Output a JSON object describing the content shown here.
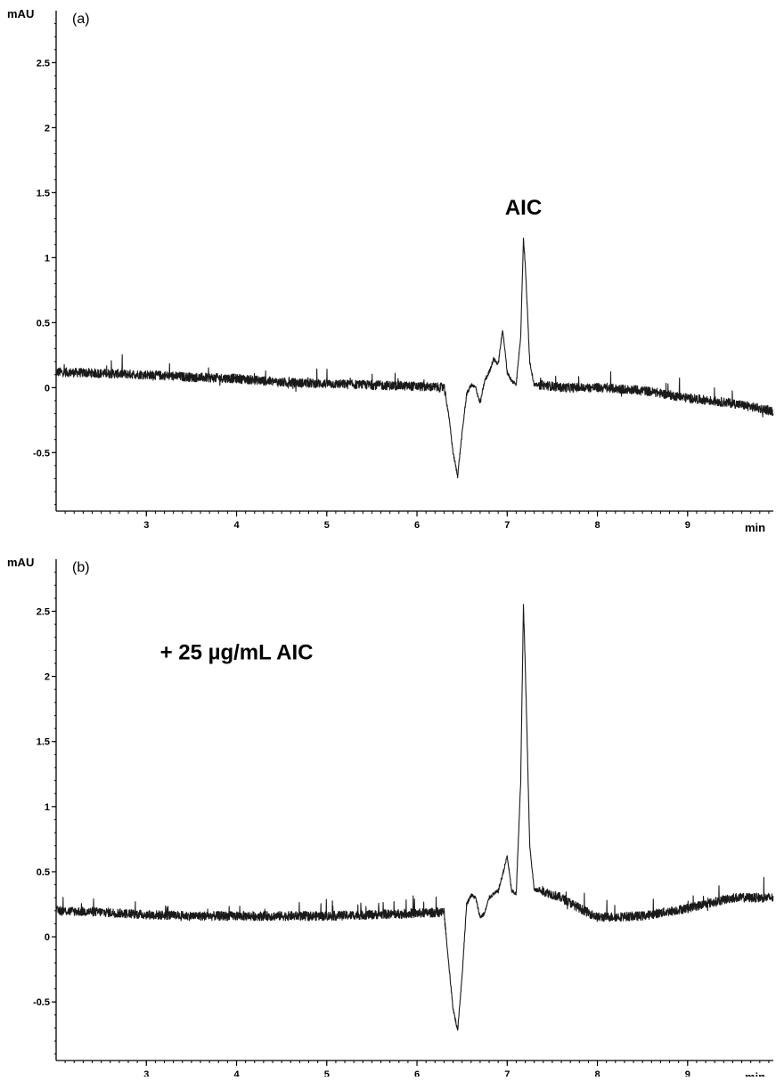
{
  "chart_data": [
    {
      "type": "line",
      "panel_label": "(a)",
      "ylabel": "mAU",
      "xlabel": "min",
      "xlim": [
        2.0,
        9.95
      ],
      "ylim": [
        -0.95,
        2.9
      ],
      "x_ticks": [
        "3",
        "4",
        "5",
        "6",
        "7",
        "8",
        "9"
      ],
      "y_ticks": [
        "-0.5",
        "0",
        "0.5",
        "1",
        "1.5",
        "2",
        "2.5"
      ],
      "annotations": [
        {
          "text": "AIC",
          "x": 7.18,
          "y": 1.33
        }
      ],
      "grid": false,
      "series": [
        {
          "x": [
            2.0,
            2.5,
            3.0,
            3.5,
            4.0,
            4.5,
            5.0,
            5.5,
            6.0,
            6.3,
            6.35,
            6.4,
            6.45,
            6.5,
            6.55,
            6.6,
            6.65,
            6.7,
            6.75,
            6.8,
            6.85,
            6.9,
            6.95,
            7.0,
            7.05,
            7.1,
            7.15,
            7.18,
            7.2,
            7.25,
            7.3,
            7.4,
            7.6,
            7.8,
            8.0,
            8.5,
            9.0,
            9.5,
            9.95
          ],
          "y": [
            0.12,
            0.11,
            0.1,
            0.08,
            0.07,
            0.04,
            0.03,
            0.02,
            0.01,
            0.0,
            -0.2,
            -0.5,
            -0.68,
            -0.35,
            -0.05,
            0.02,
            0.0,
            -0.12,
            0.05,
            0.12,
            0.22,
            0.18,
            0.45,
            0.12,
            0.05,
            0.03,
            0.4,
            1.15,
            0.95,
            0.2,
            0.02,
            0.02,
            0.0,
            0.0,
            0.0,
            -0.02,
            -0.08,
            -0.12,
            -0.18
          ]
        }
      ]
    },
    {
      "type": "line",
      "panel_label": "(b)",
      "ylabel": "mAU",
      "xlabel": "min",
      "xlim": [
        2.0,
        9.95
      ],
      "ylim": [
        -0.95,
        2.9
      ],
      "x_ticks": [
        "3",
        "4",
        "5",
        "6",
        "7",
        "8",
        "9"
      ],
      "y_ticks": [
        "-0.5",
        "0",
        "0.5",
        "1",
        "1.5",
        "2",
        "2.5"
      ],
      "annotations": [
        {
          "text": "+ 25 µg/mL AIC",
          "x": 4.0,
          "y": 2.13
        }
      ],
      "grid": false,
      "series": [
        {
          "x": [
            2.0,
            2.5,
            3.0,
            3.5,
            4.0,
            4.5,
            5.0,
            5.5,
            6.0,
            6.3,
            6.35,
            6.4,
            6.45,
            6.5,
            6.55,
            6.6,
            6.65,
            6.7,
            6.75,
            6.8,
            6.85,
            6.9,
            6.95,
            7.0,
            7.05,
            7.1,
            7.15,
            7.18,
            7.2,
            7.25,
            7.3,
            7.4,
            7.6,
            7.8,
            8.0,
            8.5,
            9.0,
            9.5,
            9.95
          ],
          "y": [
            0.2,
            0.19,
            0.17,
            0.16,
            0.16,
            0.16,
            0.16,
            0.17,
            0.18,
            0.19,
            -0.2,
            -0.55,
            -0.72,
            -0.3,
            0.25,
            0.32,
            0.3,
            0.15,
            0.18,
            0.3,
            0.33,
            0.35,
            0.48,
            0.62,
            0.35,
            0.33,
            1.2,
            2.55,
            2.1,
            0.7,
            0.36,
            0.35,
            0.3,
            0.22,
            0.15,
            0.16,
            0.22,
            0.3,
            0.3
          ]
        }
      ]
    }
  ]
}
